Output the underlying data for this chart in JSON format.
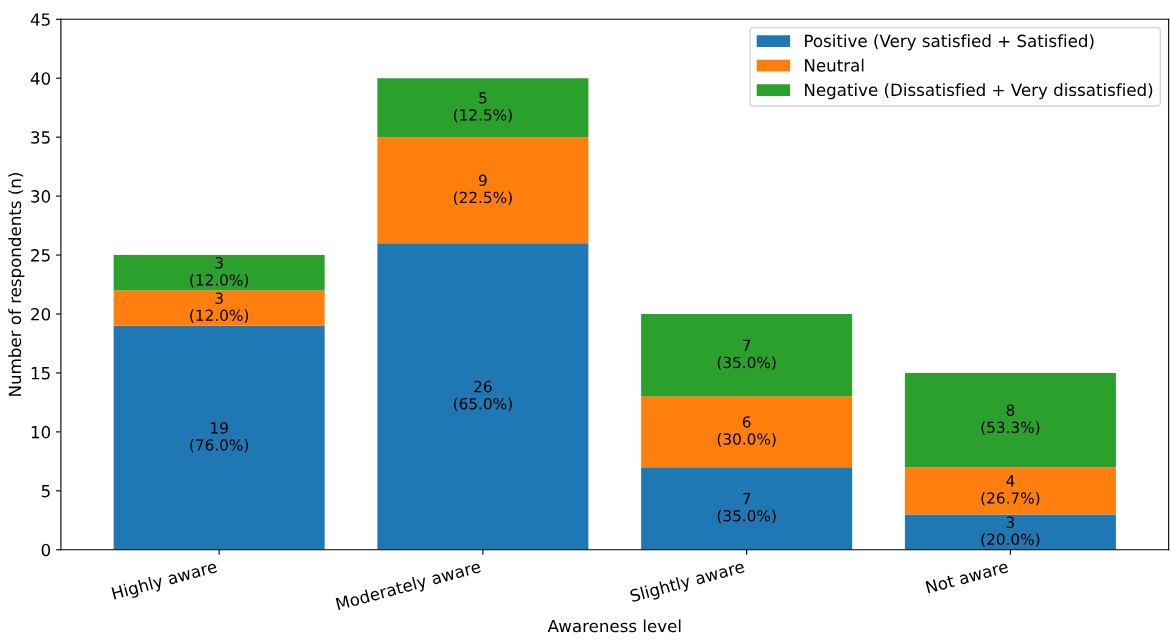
{
  "chart_data": {
    "type": "bar",
    "stacked": true,
    "xlabel": "Awareness level",
    "ylabel": "Number of respondents (n)",
    "categories": [
      "Highly aware",
      "Moderately aware",
      "Slightly aware",
      "Not aware"
    ],
    "series": [
      {
        "name": "Positive (Very satisfied + Satisfied)",
        "color": "#1f77b4",
        "values": [
          19,
          26,
          7,
          3
        ],
        "value_labels": [
          "19\n(76.0%)",
          "26\n(65.0%)",
          "7\n(35.0%)",
          "3\n(20.0%)"
        ]
      },
      {
        "name": "Neutral",
        "color": "#ff7f0e",
        "values": [
          3,
          9,
          6,
          4
        ],
        "value_labels": [
          "3\n(12.0%)",
          "9\n(22.5%)",
          "6\n(30.0%)",
          "4\n(26.7%)"
        ]
      },
      {
        "name": "Negative (Dissatisfied + Very dissatisfied)",
        "color": "#2ca02c",
        "values": [
          3,
          5,
          7,
          8
        ],
        "value_labels": [
          "3\n(12.0%)",
          "5\n(12.5%)",
          "7\n(35.0%)",
          "8\n(53.3%)"
        ]
      }
    ],
    "ylim": [
      0,
      45
    ],
    "yticks": [
      0,
      5,
      10,
      15,
      20,
      25,
      30,
      35,
      40,
      45
    ],
    "grid": false,
    "legend": "top right"
  }
}
